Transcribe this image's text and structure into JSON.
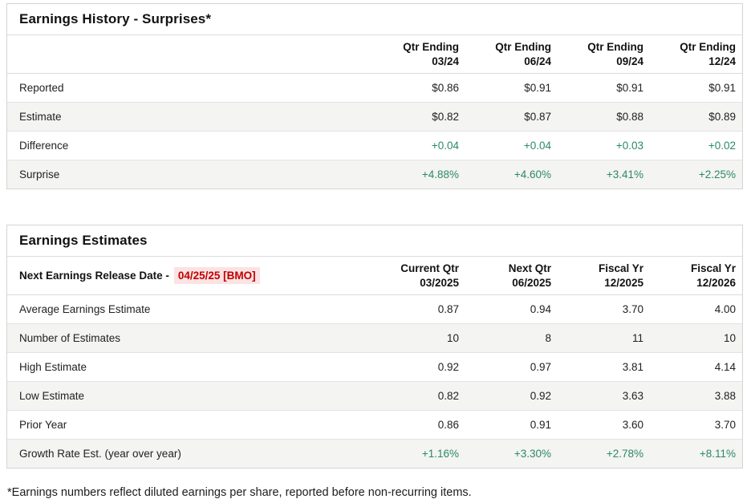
{
  "colors": {
    "green_value": "#2a8a64",
    "release_red": "#c00000",
    "release_red_bg": "#fbe3e3",
    "stripe_bg": "#f4f4f2",
    "border": "#d4d4d4"
  },
  "surprises": {
    "title": "Earnings History - Surprises*",
    "columns": [
      {
        "line1": "Qtr Ending",
        "line2": "03/24"
      },
      {
        "line1": "Qtr Ending",
        "line2": "06/24"
      },
      {
        "line1": "Qtr Ending",
        "line2": "09/24"
      },
      {
        "line1": "Qtr Ending",
        "line2": "12/24"
      }
    ],
    "rows": [
      {
        "label": "Reported",
        "values": [
          "$0.86",
          "$0.91",
          "$0.91",
          "$0.91"
        ],
        "green": false
      },
      {
        "label": "Estimate",
        "values": [
          "$0.82",
          "$0.87",
          "$0.88",
          "$0.89"
        ],
        "green": false
      },
      {
        "label": "Difference",
        "values": [
          "+0.04",
          "+0.04",
          "+0.03",
          "+0.02"
        ],
        "green": true
      },
      {
        "label": "Surprise",
        "values": [
          "+4.88%",
          "+4.60%",
          "+3.41%",
          "+2.25%"
        ],
        "green": true
      }
    ]
  },
  "estimates": {
    "title": "Earnings Estimates",
    "release_label": "Next Earnings Release Date -",
    "release_date": "04/25/25 [BMO]",
    "columns": [
      {
        "line1": "Current Qtr",
        "line2": "03/2025"
      },
      {
        "line1": "Next Qtr",
        "line2": "06/2025"
      },
      {
        "line1": "Fiscal Yr",
        "line2": "12/2025"
      },
      {
        "line1": "Fiscal Yr",
        "line2": "12/2026"
      }
    ],
    "rows": [
      {
        "label": "Average Earnings Estimate",
        "values": [
          "0.87",
          "0.94",
          "3.70",
          "4.00"
        ],
        "green": false
      },
      {
        "label": "Number of Estimates",
        "values": [
          "10",
          "8",
          "11",
          "10"
        ],
        "green": false
      },
      {
        "label": "High Estimate",
        "values": [
          "0.92",
          "0.97",
          "3.81",
          "4.14"
        ],
        "green": false
      },
      {
        "label": "Low Estimate",
        "values": [
          "0.82",
          "0.92",
          "3.63",
          "3.88"
        ],
        "green": false
      },
      {
        "label": "Prior Year",
        "values": [
          "0.86",
          "0.91",
          "3.60",
          "3.70"
        ],
        "green": false
      },
      {
        "label": "Growth Rate Est. (year over year)",
        "values": [
          "+1.16%",
          "+3.30%",
          "+2.78%",
          "+8.11%"
        ],
        "green": true
      }
    ]
  },
  "footnote": "*Earnings numbers reflect diluted earnings per share, reported before non-recurring items."
}
